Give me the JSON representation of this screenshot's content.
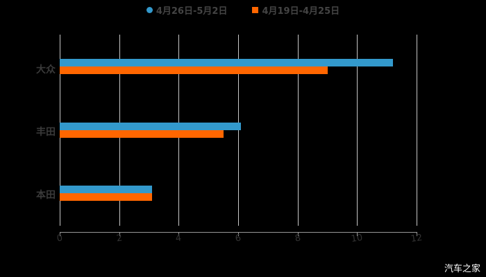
{
  "legend": {
    "series1": "4月26日-5月2日",
    "series2": "4月19日-4月25日"
  },
  "colors": {
    "series1": "#3399cc",
    "series2": "#ff6600"
  },
  "watermark": "汽车之家",
  "axis": {
    "ticks": [
      "0",
      "2",
      "4",
      "6",
      "8",
      "10",
      "12"
    ]
  },
  "categories_display": [
    "大众",
    "丰田",
    "本田"
  ],
  "chart_data": {
    "type": "bar",
    "orientation": "horizontal",
    "categories": [
      "大众",
      "丰田",
      "本田"
    ],
    "series": [
      {
        "name": "4月26日-5月2日",
        "color": "#3399cc",
        "values": [
          11.2,
          6.1,
          3.1
        ]
      },
      {
        "name": "4月19日-4月25日",
        "color": "#ff6600",
        "values": [
          9.0,
          5.5,
          3.1
        ]
      }
    ],
    "title": "",
    "xlabel": "",
    "ylabel": "",
    "xlim": [
      0,
      12
    ],
    "xticks": [
      0,
      2,
      4,
      6,
      8,
      10,
      12
    ],
    "grid": true,
    "legend_position": "top"
  }
}
